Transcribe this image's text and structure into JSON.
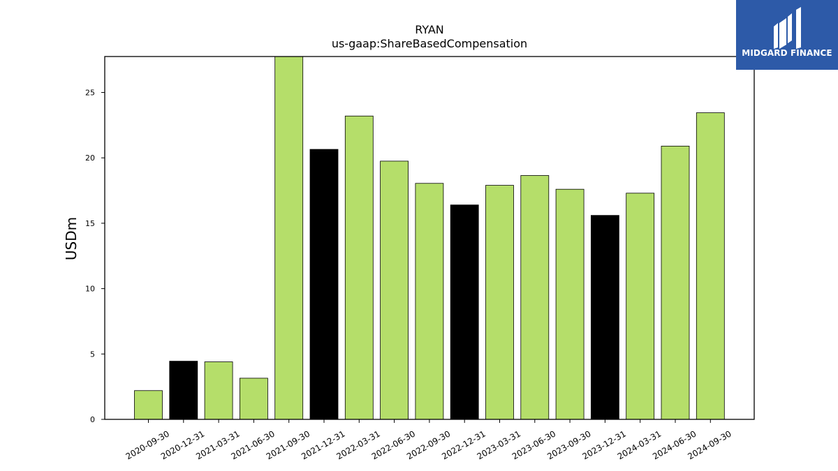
{
  "brand": {
    "name": "MIDGARD FINANCE",
    "color": "#2d5aa8"
  },
  "colors": {
    "bar_default": "#b5de6a",
    "bar_highlight": "#000000"
  },
  "chart_data": {
    "type": "bar",
    "title": "RYAN",
    "subtitle": "us-gaap:ShareBasedCompensation",
    "xlabel": "",
    "ylabel": "USDm",
    "ylim": [
      0,
      27.75
    ],
    "yticks": [
      0,
      5,
      10,
      15,
      20,
      25
    ],
    "grid": false,
    "categories": [
      "2020-09-30",
      "2020-12-31",
      "2021-03-31",
      "2021-06-30",
      "2021-09-30",
      "2021-12-31",
      "2022-03-31",
      "2022-06-30",
      "2022-09-30",
      "2022-12-31",
      "2023-03-31",
      "2023-06-30",
      "2023-09-30",
      "2023-12-31",
      "2024-03-31",
      "2024-06-30",
      "2024-09-30"
    ],
    "values": [
      2.2,
      4.45,
      4.4,
      3.15,
      27.8,
      20.65,
      23.2,
      19.75,
      18.05,
      16.4,
      17.9,
      18.65,
      17.6,
      15.6,
      17.3,
      20.9,
      23.45
    ],
    "highlight": [
      false,
      true,
      false,
      false,
      false,
      true,
      false,
      false,
      false,
      true,
      false,
      false,
      false,
      true,
      false,
      false,
      false
    ]
  }
}
